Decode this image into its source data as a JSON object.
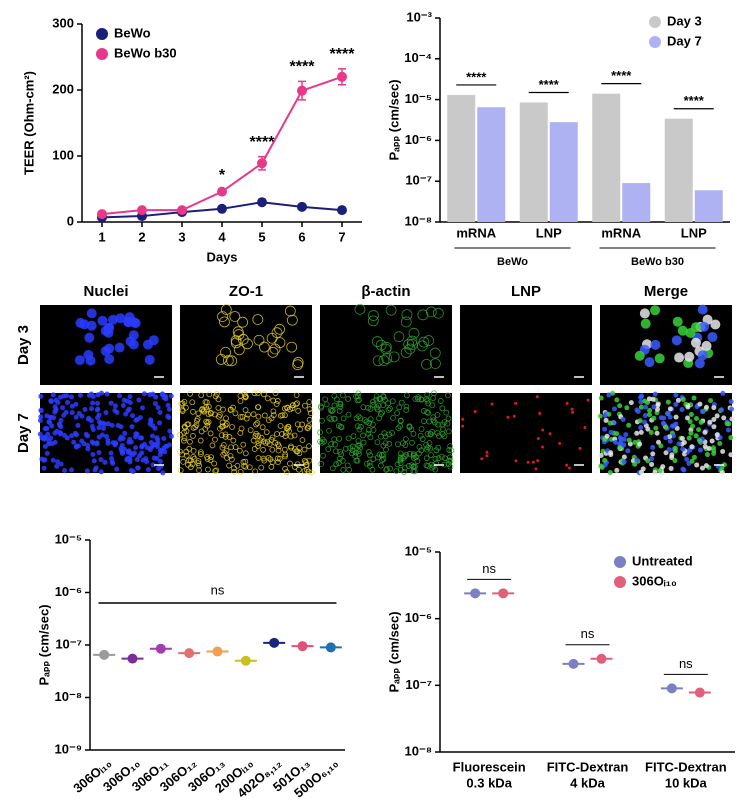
{
  "chart_data": [
    {
      "type": "line",
      "xlabel": "Days",
      "ylabel": "TEER (Ohm-cm²)",
      "x": [
        1,
        2,
        3,
        4,
        5,
        6,
        7
      ],
      "xlim": [
        0.5,
        7.5
      ],
      "xticks": [
        1,
        2,
        3,
        4,
        5,
        6,
        7
      ],
      "ylim": [
        0,
        300
      ],
      "yticks": [
        0,
        100,
        200,
        300
      ],
      "legend": "upper left",
      "series": [
        {
          "name": "BeWo",
          "color": "#1a1f7a",
          "values": [
            7,
            9,
            15,
            20,
            30,
            23,
            18
          ],
          "errors": [
            1,
            1,
            1,
            2,
            2,
            2,
            2
          ]
        },
        {
          "name": "BeWo b30",
          "color": "#e8388a",
          "values": [
            12,
            18,
            18,
            46,
            89,
            199,
            220
          ],
          "errors": [
            2,
            3,
            2,
            3,
            10,
            14,
            12
          ]
        }
      ],
      "significance": [
        null,
        null,
        null,
        "*",
        "****",
        "****",
        "****"
      ]
    },
    {
      "type": "bar",
      "log": true,
      "ylabel": "Pₐₚₚ (cm/sec)",
      "categories": [
        "mRNA",
        "LNP",
        "mRNA",
        "LNP"
      ],
      "groups": [
        "BeWo",
        "BeWo b30"
      ],
      "ylim": [
        1e-08,
        0.001
      ],
      "yticks": [
        {
          "value": 1e-08,
          "label": "10⁻⁸"
        },
        {
          "value": 1e-07,
          "label": "10⁻⁷"
        },
        {
          "value": 1e-06,
          "label": "10⁻⁶"
        },
        {
          "value": 1e-05,
          "label": "10⁻⁵"
        },
        {
          "value": 0.0001,
          "label": "10⁻⁴"
        },
        {
          "value": 0.001,
          "label": "10⁻³"
        }
      ],
      "legend": "upper right",
      "series": [
        {
          "name": "Day 3",
          "color": "#c9c9c9",
          "values": [
            1.3e-05,
            8.5e-06,
            1.4e-05,
            3.4e-06
          ]
        },
        {
          "name": "Day 7",
          "color": "#aeb2f2",
          "values": [
            6.5e-06,
            2.8e-06,
            9e-08,
            6e-08
          ]
        }
      ],
      "significance": [
        "****",
        "****",
        "****",
        "****"
      ]
    },
    {
      "type": "dot",
      "log": true,
      "ylabel": "Pₐₚₚ (cm/sec)",
      "categories": [
        "306Oᵢ₁₀",
        "306O₁₀",
        "306O₁₁",
        "306O₁₂",
        "306O₁₃",
        "200Oᵢ₁₀",
        "402O₈,₁₂",
        "501O₁₃",
        "500O₆,₁₀"
      ],
      "values": [
        6.5e-08,
        5.5e-08,
        8.5e-08,
        7e-08,
        7.5e-08,
        5e-08,
        1.1e-07,
        9.5e-08,
        9e-08
      ],
      "colors": [
        "#9a9a9a",
        "#7b2d9a",
        "#a23db0",
        "#e07070",
        "#f0a050",
        "#c8c020",
        "#1a237e",
        "#e0507a",
        "#1f6fb5"
      ],
      "ylim": [
        1e-09,
        1e-05
      ],
      "yticks": [
        {
          "value": 1e-09,
          "label": "10⁻⁹"
        },
        {
          "value": 1e-08,
          "label": "10⁻⁸"
        },
        {
          "value": 1e-07,
          "label": "10⁻⁷"
        },
        {
          "value": 1e-06,
          "label": "10⁻⁶"
        },
        {
          "value": 1e-05,
          "label": "10⁻⁵"
        }
      ],
      "annotation": "ns"
    },
    {
      "type": "dot",
      "log": true,
      "ylabel": "Pₐₚₚ (cm/sec)",
      "categories": [
        [
          "Fluorescein",
          "0.3 kDa"
        ],
        [
          "FITC-Dextran",
          "4 kDa"
        ],
        [
          "FITC-Dextran",
          "10 kDa"
        ]
      ],
      "ylim": [
        1e-08,
        1e-05
      ],
      "yticks": [
        {
          "value": 1e-08,
          "label": "10⁻⁸"
        },
        {
          "value": 1e-07,
          "label": "10⁻⁷"
        },
        {
          "value": 1e-06,
          "label": "10⁻⁶"
        },
        {
          "value": 1e-05,
          "label": "10⁻⁵"
        }
      ],
      "legend": "upper right",
      "series": [
        {
          "name": "Untreated",
          "color": "#7b7fc4",
          "values": [
            2.4e-06,
            2.1e-07,
            9e-08
          ]
        },
        {
          "name": "306Oᵢ₁₀",
          "color": "#e0607a",
          "values": [
            2.4e-06,
            2.5e-07,
            7.8e-08
          ]
        }
      ],
      "significance": [
        "ns",
        "ns",
        "ns"
      ]
    }
  ],
  "microscopy": {
    "columns": [
      "Nuclei",
      "ZO-1",
      "β-actin",
      "LNP",
      "Merge"
    ],
    "rows": [
      "Day 3",
      "Day 7"
    ]
  }
}
